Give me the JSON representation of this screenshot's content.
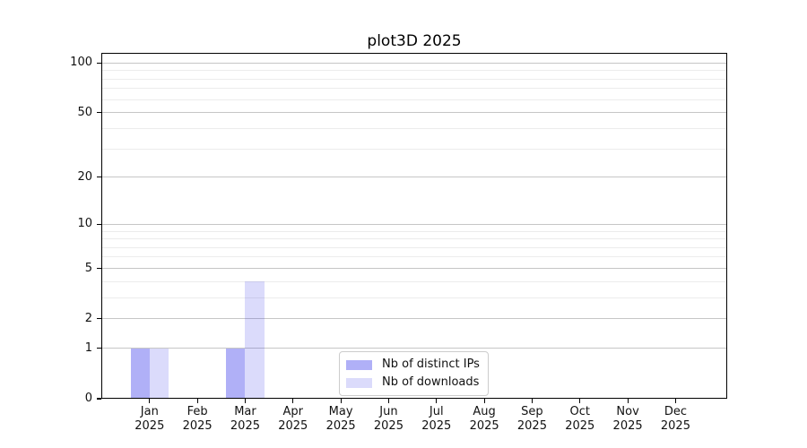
{
  "chart_data": {
    "type": "bar",
    "title": "plot3D 2025",
    "categories": [
      "Jan",
      "Feb",
      "Mar",
      "Apr",
      "May",
      "Jun",
      "Jul",
      "Aug",
      "Sep",
      "Oct",
      "Nov",
      "Dec"
    ],
    "category_year": "2025",
    "series": [
      {
        "name": "Nb of distinct IPs",
        "color": "rgba(28,28,232,0.35)",
        "values": [
          1,
          0,
          1,
          0,
          0,
          0,
          0,
          0,
          0,
          0,
          0,
          0
        ]
      },
      {
        "name": "Nb of downloads",
        "color": "rgba(28,28,232,0.16)",
        "values": [
          1,
          0,
          4,
          0,
          0,
          0,
          0,
          0,
          0,
          0,
          0,
          0
        ]
      }
    ],
    "y_scale": "log1p",
    "ylim": [
      0,
      115
    ],
    "y_major_ticks": [
      0,
      1,
      2,
      5,
      10,
      20,
      50,
      100
    ],
    "y_minor_ticks": [
      3,
      4,
      6,
      7,
      8,
      9,
      30,
      40,
      60,
      70,
      80,
      90
    ],
    "grid": true,
    "legend_position": "lower-center-inside",
    "colors": {
      "major_grid": "#c6c6c6",
      "minor_grid": "#ececec",
      "spine": "#000000",
      "text": "#111111",
      "legend_border": "#cccccc"
    }
  }
}
